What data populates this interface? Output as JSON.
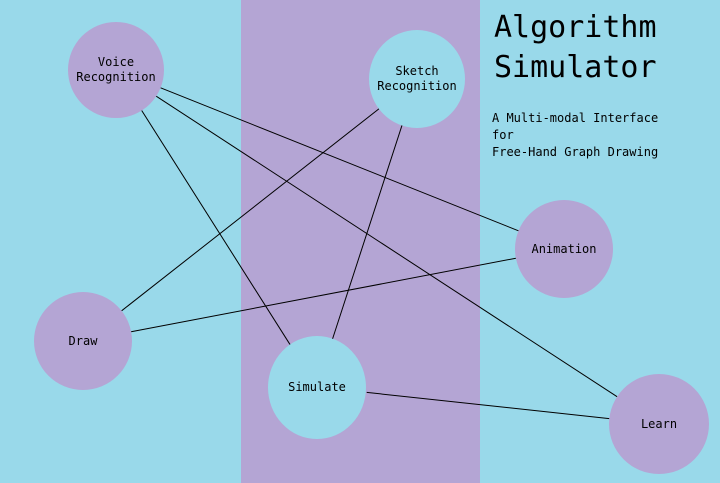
{
  "title": "Algorithm\nSimulator",
  "subtitle": "A Multi-modal Interface\nfor\nFree-Hand Graph Drawing",
  "colors": {
    "background": "#99d9ea",
    "band": "#b4a5d4",
    "node_purple": "#b4a5d4",
    "node_cyan": "#99d9ea",
    "edge": "#000000"
  },
  "nodes": {
    "voice": "Voice\nRecognition",
    "sketch": "Sketch\nRecognition",
    "animation": "Animation",
    "draw": "Draw",
    "simulate": "Simulate",
    "learn": "Learn"
  },
  "edges": [
    [
      "voice",
      "animation"
    ],
    [
      "voice",
      "learn"
    ],
    [
      "voice",
      "simulate"
    ],
    [
      "sketch",
      "draw"
    ],
    [
      "sketch",
      "simulate"
    ],
    [
      "draw",
      "animation"
    ],
    [
      "simulate",
      "learn"
    ]
  ]
}
